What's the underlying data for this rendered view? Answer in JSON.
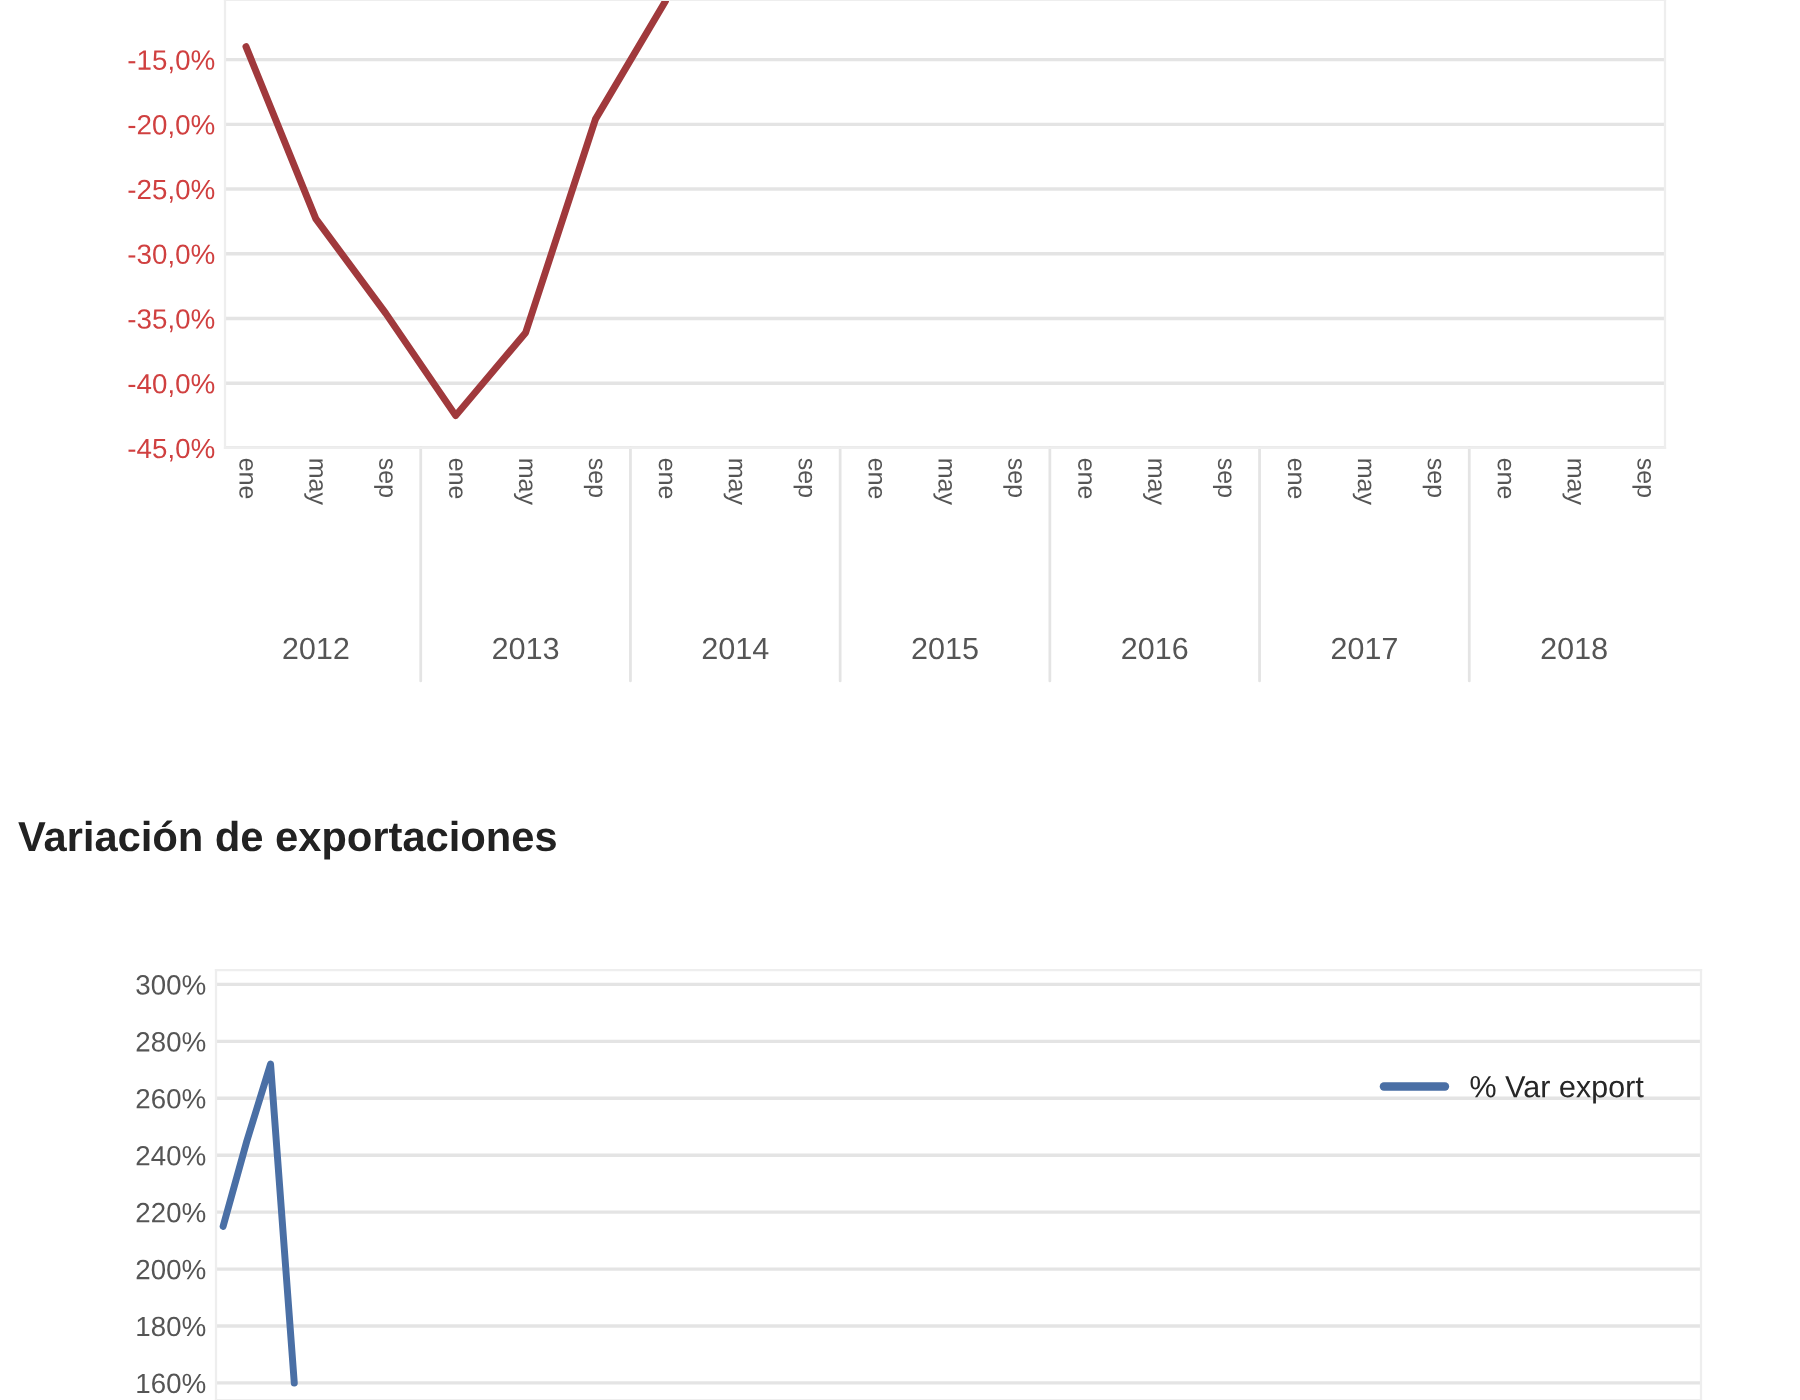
{
  "chart_data": [
    {
      "type": "line",
      "categories": [
        "ene",
        "may",
        "sep",
        "ene",
        "may",
        "sep",
        "ene",
        "may",
        "sep",
        "ene",
        "may",
        "sep",
        "ene",
        "may",
        "sep",
        "ene",
        "may",
        "sep",
        "ene",
        "may",
        "sep"
      ],
      "series": [
        {
          "color": "#a0393c",
          "values": [
            -14,
            -27.3,
            -34.6,
            -42.5,
            -36.1,
            -19.6,
            -10.5,
            null,
            null,
            null,
            null,
            null,
            null,
            null,
            null,
            null,
            null,
            null,
            null,
            null,
            null
          ]
        }
      ],
      "ylim": [
        -45,
        -10.4
      ],
      "yticks": [
        {
          "value": -15,
          "label": "-15,0%"
        },
        {
          "value": -20,
          "label": "-20,0%"
        },
        {
          "value": -25,
          "label": "-25,0%"
        },
        {
          "value": -30,
          "label": "-30,0%"
        },
        {
          "value": -35,
          "label": "-35,0%"
        },
        {
          "value": -40,
          "label": "-40,0%"
        },
        {
          "value": -45,
          "label": "-45,0%"
        }
      ],
      "annotations": [
        "2012",
        "2013",
        "2014",
        "2015",
        "2016",
        "2017",
        "2018"
      ],
      "grid": "y",
      "legend": false,
      "marker": "none",
      "line_style": "solid"
    },
    {
      "type": "line",
      "title": "Variación de exportaciones",
      "categories": [
        null,
        null,
        null,
        null,
        null,
        null,
        null,
        null,
        null,
        null,
        null,
        null,
        null,
        null,
        null,
        null,
        null,
        null,
        null,
        null,
        null,
        null,
        null,
        null,
        null,
        null,
        null,
        null,
        null,
        null,
        null,
        null,
        null,
        null,
        null,
        null,
        null,
        null,
        null,
        null,
        null,
        null,
        null,
        null,
        null,
        null,
        null,
        null,
        null,
        null,
        null,
        null,
        null,
        null,
        null,
        null,
        null,
        null,
        null,
        null,
        null,
        null,
        null
      ],
      "series": [
        {
          "name": "% Var export",
          "color": "#4a6fa5",
          "values": [
            215,
            245,
            272,
            160,
            null,
            null,
            null,
            null,
            null,
            null,
            null,
            null,
            null,
            null,
            null,
            null,
            null,
            null,
            null,
            null,
            null,
            null,
            null,
            null,
            null,
            null,
            null,
            null,
            null,
            null,
            null,
            null,
            null,
            null,
            null,
            null,
            null,
            null,
            null,
            null,
            null,
            null,
            null,
            null,
            null,
            null,
            null,
            null,
            null,
            null,
            null,
            null,
            null,
            null,
            null,
            null,
            null,
            null,
            null,
            null,
            null,
            null,
            null
          ]
        }
      ],
      "ylim": [
        154,
        305
      ],
      "yticks": [
        {
          "value": 160,
          "label": "160%"
        },
        {
          "value": 180,
          "label": "180%"
        },
        {
          "value": 200,
          "label": "200%"
        },
        {
          "value": 220,
          "label": "220%"
        },
        {
          "value": 240,
          "label": "240%"
        },
        {
          "value": 260,
          "label": "260%"
        },
        {
          "value": 280,
          "label": "280%"
        },
        {
          "value": 300,
          "label": "300%"
        }
      ],
      "tick_labels": "y",
      "grid": "y",
      "legend": "top right",
      "marker": "none",
      "line_style": "solid"
    }
  ]
}
